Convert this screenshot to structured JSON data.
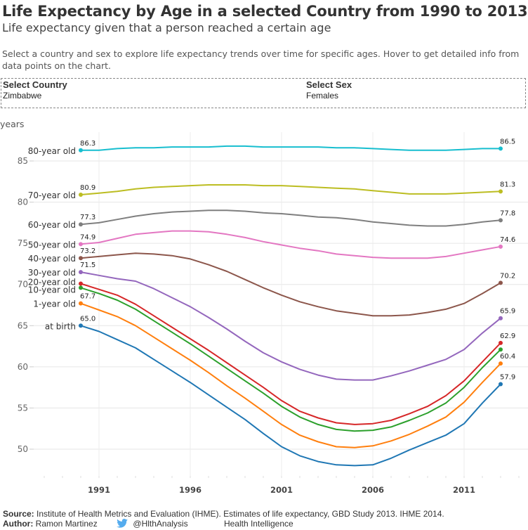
{
  "header": {
    "title": "Life Expectancy by Age in a selected Country from 1990 to 2013",
    "subtitle": "Life expectancy given that a person reached a certain age",
    "description": "Select a country and sex to explore life expectancy trends over time for specific ages. Hover to get detailed info from data points on the chart."
  },
  "filters": {
    "country": {
      "label": "Select Country",
      "value": "Zimbabwe"
    },
    "sex": {
      "label": "Select Sex",
      "value": "Females"
    }
  },
  "footer": {
    "source_label": "Source:",
    "source_text": "Institute of Health Metrics and Evaluation (IHME). Estimates of life expectancy, GBD Study 2013. IHME 2014.",
    "author_label": "Author:",
    "author_text": "Ramon Martinez",
    "twitter_icon": "twitter-bird-icon",
    "twitter_handle": "@HlthAnalysis",
    "org": "Health Intelligence"
  },
  "chart_data": {
    "type": "line",
    "title": "Life Expectancy by Age in a selected Country from 1990 to 2013",
    "ylabel": "years",
    "xlabel": "",
    "ylim": [
      46.5,
      88.5
    ],
    "xlim": [
      1987.5,
      2014.5
    ],
    "yticks": [
      50,
      55,
      60,
      65,
      70,
      75,
      80,
      85
    ],
    "xticks": [
      1991,
      1996,
      2001,
      2006,
      2011
    ],
    "grid": true,
    "legend": "inline-left",
    "x": [
      1990,
      1991,
      1992,
      1993,
      1994,
      1995,
      1996,
      1997,
      1998,
      1999,
      2000,
      2001,
      2002,
      2003,
      2004,
      2005,
      2006,
      2007,
      2008,
      2009,
      2010,
      2011,
      2012,
      2013
    ],
    "series": [
      {
        "name": "80-year old",
        "color": "#17becf",
        "start_label": "86.3",
        "end_label": "86.5",
        "values": [
          86.3,
          86.3,
          86.5,
          86.6,
          86.6,
          86.7,
          86.7,
          86.7,
          86.8,
          86.8,
          86.7,
          86.7,
          86.7,
          86.7,
          86.6,
          86.6,
          86.5,
          86.4,
          86.3,
          86.3,
          86.3,
          86.4,
          86.5,
          86.5
        ]
      },
      {
        "name": "70-year old",
        "color": "#bcbd22",
        "start_label": "80.9",
        "end_label": "81.3",
        "values": [
          80.9,
          81.1,
          81.3,
          81.6,
          81.8,
          81.9,
          82.0,
          82.1,
          82.1,
          82.1,
          82.0,
          82.0,
          81.9,
          81.8,
          81.7,
          81.6,
          81.4,
          81.2,
          81.0,
          81.0,
          81.0,
          81.1,
          81.2,
          81.3
        ]
      },
      {
        "name": "60-year old",
        "color": "#7f7f7f",
        "start_label": "77.3",
        "end_label": "77.8",
        "values": [
          77.3,
          77.5,
          77.9,
          78.3,
          78.6,
          78.8,
          78.9,
          79.0,
          79.0,
          78.9,
          78.7,
          78.6,
          78.4,
          78.2,
          78.1,
          77.9,
          77.6,
          77.4,
          77.2,
          77.1,
          77.1,
          77.3,
          77.6,
          77.8
        ]
      },
      {
        "name": "50-year old",
        "color": "#e377c2",
        "start_label": "74.9",
        "end_label": "74.6",
        "values": [
          74.9,
          75.1,
          75.6,
          76.1,
          76.3,
          76.5,
          76.5,
          76.4,
          76.1,
          75.7,
          75.2,
          74.8,
          74.4,
          74.1,
          73.7,
          73.5,
          73.3,
          73.2,
          73.2,
          73.2,
          73.4,
          73.8,
          74.2,
          74.6
        ]
      },
      {
        "name": "40-year old",
        "color": "#8c564b",
        "start_label": "73.2",
        "end_label": "70.2",
        "values": [
          73.2,
          73.4,
          73.6,
          73.8,
          73.7,
          73.5,
          73.1,
          72.4,
          71.6,
          70.6,
          69.6,
          68.7,
          67.9,
          67.3,
          66.8,
          66.5,
          66.2,
          66.2,
          66.3,
          66.6,
          67.0,
          67.7,
          68.9,
          70.2
        ]
      },
      {
        "name": "30-year old",
        "color": "#9467bd",
        "start_label": "71.5",
        "end_label": "65.9",
        "values": [
          71.5,
          71.1,
          70.7,
          70.4,
          69.5,
          68.4,
          67.3,
          66.0,
          64.6,
          63.1,
          61.7,
          60.6,
          59.7,
          59.0,
          58.5,
          58.4,
          58.4,
          58.9,
          59.5,
          60.2,
          60.9,
          62.1,
          64.1,
          65.9
        ]
      },
      {
        "name": "20-year old",
        "color": "#d62728",
        "start_label": "",
        "end_label": "62.9",
        "values": [
          70.1,
          69.4,
          68.7,
          67.6,
          66.2,
          64.8,
          63.4,
          62.0,
          60.5,
          59.0,
          57.5,
          55.9,
          54.6,
          53.8,
          53.2,
          53.0,
          53.1,
          53.5,
          54.3,
          55.2,
          56.5,
          58.3,
          60.6,
          62.9
        ]
      },
      {
        "name": "10-year old",
        "color": "#2ca02c",
        "start_label": "",
        "end_label": "",
        "values": [
          69.6,
          68.9,
          68.1,
          67.0,
          65.6,
          64.2,
          62.8,
          61.3,
          59.8,
          58.3,
          56.8,
          55.2,
          53.9,
          53.0,
          52.4,
          52.2,
          52.3,
          52.7,
          53.5,
          54.4,
          55.6,
          57.5,
          59.9,
          62.1
        ]
      },
      {
        "name": "1-year old",
        "color": "#ff7f0e",
        "start_label": "67.7",
        "end_label": "60.4",
        "values": [
          67.7,
          66.9,
          66.1,
          65.0,
          63.6,
          62.2,
          60.8,
          59.3,
          57.7,
          56.2,
          54.6,
          53.0,
          51.7,
          50.9,
          50.3,
          50.2,
          50.4,
          51.0,
          51.8,
          52.8,
          53.9,
          55.7,
          58.1,
          60.4
        ]
      },
      {
        "name": "at birth",
        "color": "#1f77b4",
        "start_label": "65.0",
        "end_label": "57.9",
        "values": [
          65.0,
          64.3,
          63.3,
          62.3,
          60.9,
          59.5,
          58.1,
          56.6,
          55.1,
          53.6,
          51.9,
          50.3,
          49.2,
          48.5,
          48.1,
          48.0,
          48.1,
          48.9,
          49.9,
          50.8,
          51.7,
          53.1,
          55.6,
          57.9
        ]
      }
    ]
  }
}
